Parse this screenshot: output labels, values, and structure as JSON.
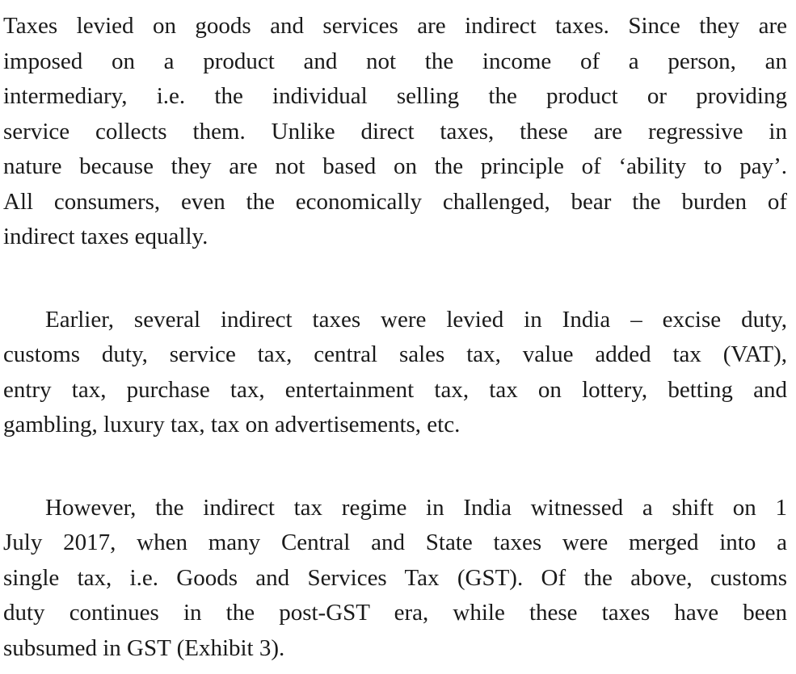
{
  "page": {
    "background_color": "#ffffff",
    "text_color": "#1a1a1a"
  },
  "paragraphs": [
    {
      "indent": false,
      "lines": [
        "Taxes levied on goods and services are indirect taxes. Since they are",
        "imposed on a product and not the income of a person, an",
        "intermediary, i.e. the individual selling the product or providing",
        "service collects them. Unlike direct taxes, these are regressive in",
        "nature because they are not based on the principle of ‘ability to pay’.",
        "All consumers, even the economically challenged, bear the burden of",
        "indirect taxes equally."
      ]
    },
    {
      "indent": true,
      "lines": [
        "Earlier, several indirect taxes were levied in India – excise duty,",
        "customs duty, service tax, central sales tax, value added tax (VAT),",
        "entry tax, purchase tax, entertainment tax, tax on lottery, betting and",
        "gambling, luxury tax, tax on advertisements, etc."
      ]
    },
    {
      "indent": true,
      "lines": [
        "However, the indirect tax regime in India witnessed a shift on 1",
        "July 2017, when many Central and State taxes were merged into a",
        "single tax, i.e. Goods and Services Tax (GST). Of the above, customs",
        "duty continues in the post-GST era, while these taxes have been",
        "subsumed in GST (Exhibit 3)."
      ]
    }
  ]
}
